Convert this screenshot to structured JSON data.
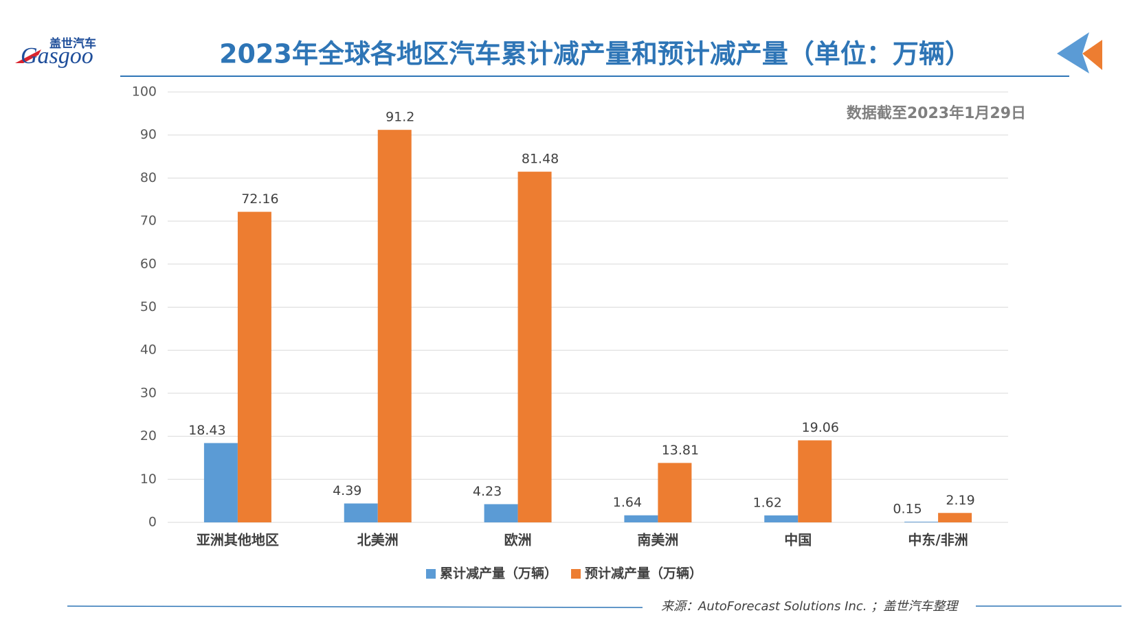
{
  "chart_data": {
    "type": "bar",
    "title": "2023年全球各地区汽车累计减产量和预计减产量（单位：万辆）",
    "logo": {
      "name": "盖世汽车",
      "brand": "Gasgoo"
    },
    "note": "数据截至2023年1月29日",
    "source": "来源：AutoForecast Solutions Inc. ；盖世汽车整理",
    "categories": [
      "亚洲其他地区",
      "北美洲",
      "欧洲",
      "南美洲",
      "中国",
      "中东/非洲"
    ],
    "series": [
      {
        "name": "累计减产量（万辆）",
        "color": "#5b9bd5",
        "values": [
          18.43,
          4.39,
          4.23,
          1.64,
          1.62,
          0.15
        ]
      },
      {
        "name": "预计减产量（万辆）",
        "color": "#ed7d31",
        "values": [
          72.16,
          91.2,
          81.48,
          13.81,
          19.06,
          2.19
        ]
      }
    ],
    "ylim": [
      0,
      100
    ],
    "yticks": [
      0,
      10,
      20,
      30,
      40,
      50,
      60,
      70,
      80,
      90,
      100
    ],
    "grid": true,
    "legend": "bottom"
  }
}
